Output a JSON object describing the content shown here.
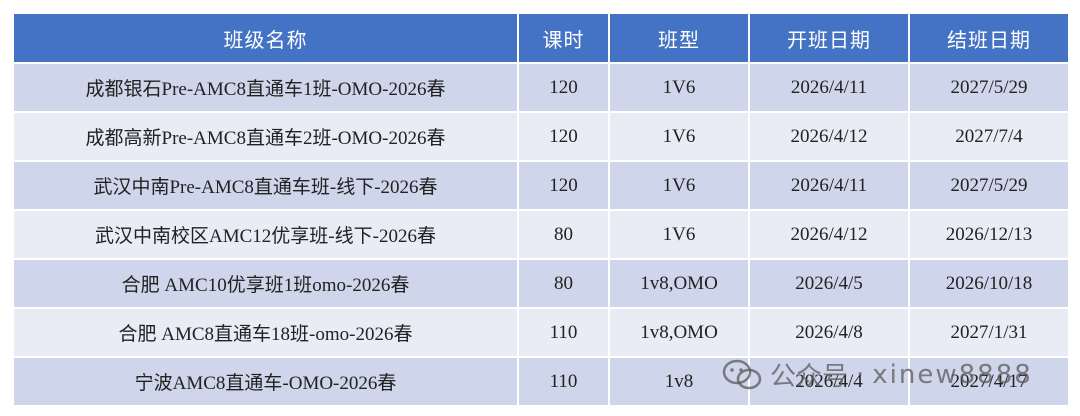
{
  "table": {
    "header": [
      "班级名称",
      "课时",
      "班型",
      "开班日期",
      "结班日期"
    ],
    "rows": [
      [
        "成都银石Pre-AMC8直通车1班-OMO-2026春",
        "120",
        "1V6",
        "2026/4/11",
        "2027/5/29"
      ],
      [
        "成都高新Pre-AMC8直通车2班-OMO-2026春",
        "120",
        "1V6",
        "2026/4/12",
        "2027/7/4"
      ],
      [
        "武汉中南Pre-AMC8直通车班-线下-2026春",
        "120",
        "1V6",
        "2026/4/11",
        "2027/5/29"
      ],
      [
        "武汉中南校区AMC12优享班-线下-2026春",
        "80",
        "1V6",
        "2026/4/12",
        "2026/12/13"
      ],
      [
        "合肥 AMC10优享班1班omo-2026春",
        "80",
        "1v8,OMO",
        "2026/4/5",
        "2026/10/18"
      ],
      [
        "合肥 AMC8直通车18班-omo-2026春",
        "110",
        "1v8,OMO",
        "2026/4/8",
        "2027/1/31"
      ],
      [
        "宁波AMC8直通车-OMO-2026春",
        "110",
        "1v8",
        "2026/4/4",
        "2027/4/17"
      ]
    ]
  },
  "watermark": {
    "label": "公众号",
    "separator": "·",
    "account": "xinew8888"
  }
}
